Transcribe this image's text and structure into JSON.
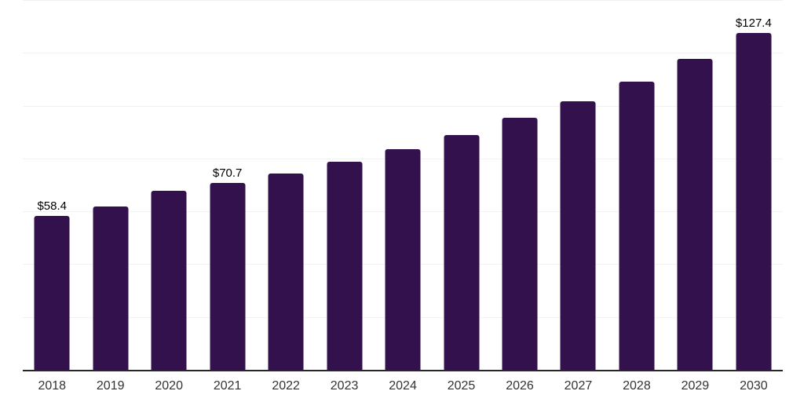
{
  "chart_data": {
    "type": "bar",
    "title": "",
    "xlabel": "",
    "ylabel": "",
    "categories": [
      "2018",
      "2019",
      "2020",
      "2021",
      "2022",
      "2023",
      "2024",
      "2025",
      "2026",
      "2027",
      "2028",
      "2029",
      "2030"
    ],
    "values": [
      58.4,
      61.9,
      67.7,
      70.7,
      74.4,
      78.9,
      83.4,
      89.0,
      95.3,
      101.8,
      109.2,
      117.8,
      127.4
    ],
    "value_labels": {
      "2018": "$58.4",
      "2021": "$70.7",
      "2030": "$127.4"
    },
    "ylim": [
      0,
      140
    ],
    "gridline_step": 20,
    "grid": "horizontal",
    "legend": "none",
    "colors": {
      "bar": "#33114d",
      "gridline": "#f2f2f2",
      "axis_line": "#262626",
      "tick_label": "#333333",
      "value_label": "#000000",
      "background": "#ffffff"
    }
  }
}
